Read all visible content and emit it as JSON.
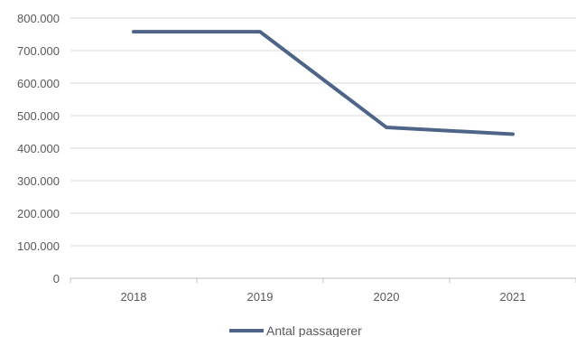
{
  "chart_data": {
    "type": "line",
    "categories": [
      "2018",
      "2019",
      "2020",
      "2021"
    ],
    "series": [
      {
        "name": "Antal passagerer",
        "values": [
          758000,
          758000,
          464000,
          443000
        ],
        "color": "#4E6587"
      }
    ],
    "yticks": [
      "0",
      "100.000",
      "200.000",
      "300.000",
      "400.000",
      "500.000",
      "600.000",
      "700.000",
      "800.000"
    ],
    "ylim": [
      0,
      800000
    ],
    "grid": true,
    "legend": "bottom-center",
    "gridColor": "#D9D9D9",
    "axisColor": "#BFBFBF"
  }
}
